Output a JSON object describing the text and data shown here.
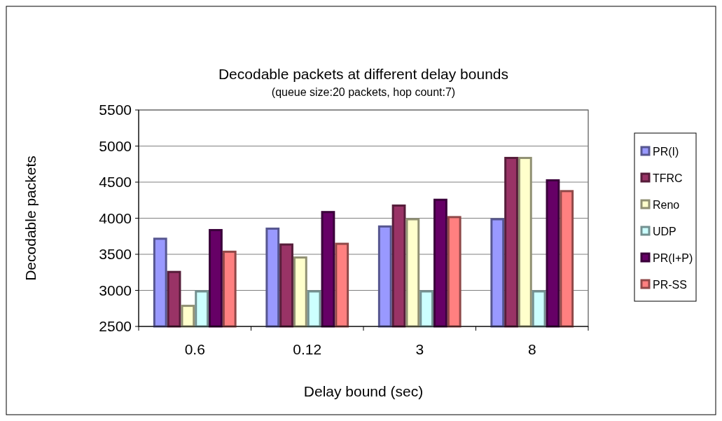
{
  "chart_data": {
    "type": "bar",
    "title": "Decodable packets at different delay bounds",
    "subtitle": "(queue size:20 packets, hop count:7)",
    "xlabel": "Delay bound (sec)",
    "ylabel": "Decodable packets",
    "categories": [
      "0.6",
      "0.12",
      "3",
      "8"
    ],
    "series": [
      {
        "name": "PR(I)",
        "color": "#9999ff",
        "values": [
          3730,
          3870,
          3900,
          4000
        ]
      },
      {
        "name": "TFRC",
        "color": "#993366",
        "values": [
          3270,
          3650,
          4190,
          4850
        ]
      },
      {
        "name": "Reno",
        "color": "#ffffcc",
        "values": [
          2800,
          3470,
          4000,
          4850
        ]
      },
      {
        "name": "UDP",
        "color": "#ccffff",
        "values": [
          3000,
          3000,
          3000,
          3000
        ]
      },
      {
        "name": "PR(I+P)",
        "color": "#660066",
        "values": [
          3850,
          4100,
          4270,
          4540
        ]
      },
      {
        "name": "PR-SS",
        "color": "#ff8080",
        "values": [
          3550,
          3660,
          4030,
          4390
        ]
      }
    ],
    "ylim": [
      2500,
      5500
    ],
    "yticks": [
      2500,
      3000,
      3500,
      4000,
      4500,
      5000,
      5500
    ],
    "grid": "y",
    "legend": "right"
  }
}
